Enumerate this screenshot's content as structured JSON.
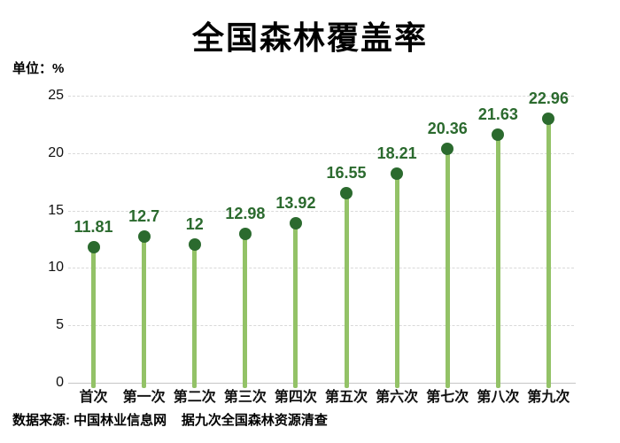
{
  "chart_data": {
    "type": "lollipop",
    "title": "全国森林覆盖率",
    "unit_label": "单位：%",
    "categories": [
      "首次",
      "第一次",
      "第二次",
      "第三次",
      "第四次",
      "第五次",
      "第六次",
      "第七次",
      "第八次",
      "第九次"
    ],
    "values": [
      11.81,
      12.7,
      12,
      12.98,
      13.92,
      16.55,
      18.21,
      20.36,
      21.63,
      22.96
    ],
    "yticks": [
      0,
      5,
      10,
      15,
      20,
      25
    ],
    "ylim": [
      0,
      25
    ],
    "xlabel": "",
    "ylabel": "%",
    "grid": "horizontal-dashed",
    "legend": "none",
    "colors": {
      "stem": "#93C267",
      "dot": "#2B6A2E",
      "value_label": "#2B6A2E",
      "gridline": "#D9D9D9",
      "axis_line": "#C6C6C6",
      "text": "#000000"
    }
  },
  "footer": {
    "text": "数据来源: 中国林业信息网    据九次全国森林资源清查"
  }
}
